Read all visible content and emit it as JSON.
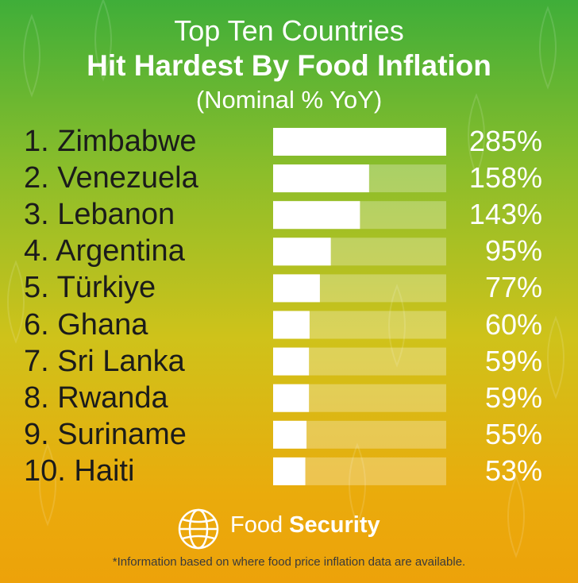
{
  "title": {
    "line1": "Top Ten Countries",
    "line2": "Hit Hardest By Food Inflation",
    "line3": "(Nominal % YoY)"
  },
  "chart_data": {
    "type": "bar",
    "orientation": "horizontal",
    "title": "Top Ten Countries Hit Hardest By Food Inflation",
    "subtitle": "(Nominal % YoY)",
    "categories": [
      "Zimbabwe",
      "Venezuela",
      "Lebanon",
      "Argentina",
      "Türkiye",
      "Ghana",
      "Sri Lanka",
      "Rwanda",
      "Suriname",
      "Haiti"
    ],
    "row_labels": [
      "1. Zimbabwe",
      "2. Venezuela",
      "3. Lebanon",
      "4. Argentina",
      "5. Türkiye",
      "6. Ghana",
      "7. Sri Lanka",
      "8. Rwanda",
      "9. Suriname",
      "10. Haiti"
    ],
    "values": [
      285,
      158,
      143,
      95,
      77,
      60,
      59,
      59,
      55,
      53
    ],
    "value_labels": [
      "285%",
      "158%",
      "143%",
      "95%",
      "77%",
      "60%",
      "59%",
      "59%",
      "55%",
      "53%"
    ],
    "unit": "%",
    "xlim": [
      0,
      285
    ],
    "grid": false,
    "legend": "none"
  },
  "colors": {
    "bar": "#ffffff",
    "track": "#ffffff",
    "label_text": "#1b1b1b",
    "value_text": "#ffffff",
    "gradient_top": "#3fae39",
    "gradient_bottom": "#eda20a"
  },
  "footer": {
    "logo_icon": "globe-icon",
    "brand_regular": "Food ",
    "brand_bold": "Security",
    "note": "*Information based on where food price inflation data are available."
  }
}
